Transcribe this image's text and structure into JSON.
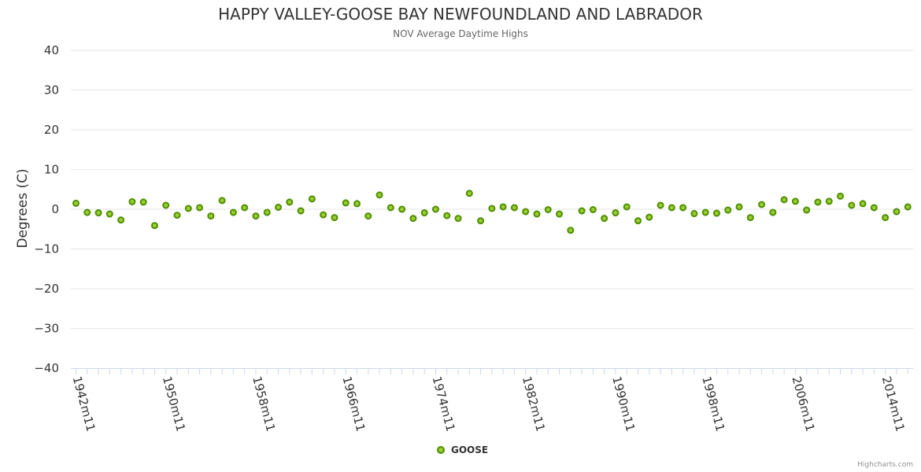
{
  "chart_data": {
    "type": "scatter",
    "title": "HAPPY VALLEY-GOOSE BAY NEWFOUNDLAND AND LABRADOR",
    "subtitle": "NOV Average Daytime Highs",
    "ylabel": "Degrees (C)",
    "xlabel": "",
    "ylim": [
      -40,
      40
    ],
    "yticks": [
      -40,
      -30,
      -20,
      -10,
      0,
      10,
      20,
      30,
      40
    ],
    "xtick_labels": [
      "1942m11",
      "1950m11",
      "1958m11",
      "1966m11",
      "1974m11",
      "1982m11",
      "1990m11",
      "1998m11",
      "2006m11",
      "2014m11"
    ],
    "grid": true,
    "legend_position": "bottom-center",
    "credits": "Highcharts.com",
    "colors": {
      "marker_fill": "#9ACD32",
      "marker_stroke": "#4D8F00",
      "grid": "#e6e6e6",
      "axis": "#ccd6eb"
    },
    "series": [
      {
        "name": "GOOSE",
        "x": [
          "1942m11",
          "1943m11",
          "1944m11",
          "1945m11",
          "1946m11",
          "1947m11",
          "1948m11",
          "1949m11",
          "1950m11",
          "1951m11",
          "1952m11",
          "1953m11",
          "1954m11",
          "1955m11",
          "1956m11",
          "1957m11",
          "1958m11",
          "1959m11",
          "1960m11",
          "1961m11",
          "1962m11",
          "1963m11",
          "1964m11",
          "1965m11",
          "1966m11",
          "1967m11",
          "1968m11",
          "1969m11",
          "1970m11",
          "1971m11",
          "1972m11",
          "1973m11",
          "1974m11",
          "1975m11",
          "1976m11",
          "1977m11",
          "1978m11",
          "1979m11",
          "1980m11",
          "1981m11",
          "1982m11",
          "1983m11",
          "1984m11",
          "1985m11",
          "1986m11",
          "1987m11",
          "1988m11",
          "1989m11",
          "1990m11",
          "1991m11",
          "1992m11",
          "1993m11",
          "1994m11",
          "1995m11",
          "1996m11",
          "1997m11",
          "1998m11",
          "1999m11",
          "2000m11",
          "2001m11",
          "2002m11",
          "2003m11",
          "2004m11",
          "2005m11",
          "2006m11",
          "2007m11",
          "2008m11",
          "2009m11",
          "2010m11",
          "2011m11",
          "2012m11",
          "2013m11",
          "2014m11",
          "2015m11",
          "2016m11"
        ],
        "values": [
          1.5,
          -0.8,
          -0.9,
          -1.2,
          -2.7,
          1.9,
          1.8,
          -4.1,
          1.0,
          -1.5,
          0.2,
          0.4,
          -1.7,
          2.2,
          -0.8,
          0.4,
          -1.7,
          -0.8,
          0.5,
          1.8,
          -0.4,
          2.6,
          -1.4,
          -2.1,
          1.6,
          1.4,
          -1.7,
          3.6,
          0.4,
          0.0,
          -2.3,
          -0.9,
          0.0,
          -1.6,
          -2.3,
          4.0,
          -2.9,
          0.2,
          0.6,
          0.4,
          -0.6,
          -1.2,
          -0.1,
          -1.2,
          -5.3,
          -0.4,
          -0.1,
          -2.3,
          -0.9,
          0.6,
          -2.9,
          -2.0,
          1.0,
          0.4,
          0.4,
          -1.1,
          -0.8,
          -1.0,
          -0.2,
          0.6,
          -2.1,
          1.2,
          -0.8,
          2.4,
          2.0,
          -0.2,
          1.8,
          2.0,
          3.3,
          1.0,
          1.4,
          0.4,
          -2.1,
          -0.6,
          0.6
        ]
      }
    ]
  }
}
